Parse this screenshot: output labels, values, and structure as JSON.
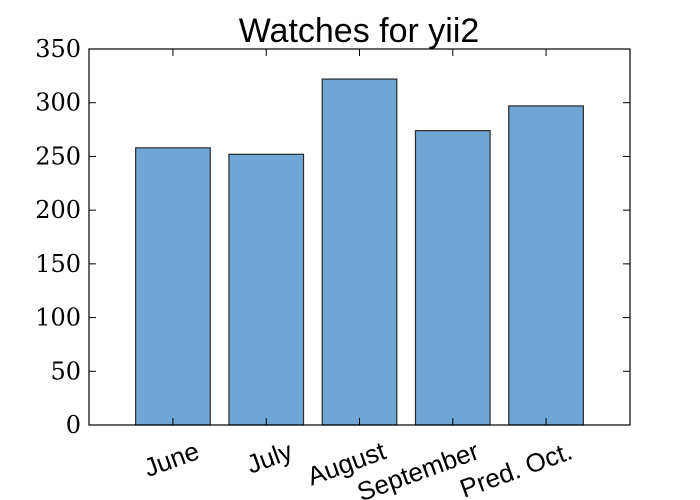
{
  "chart_data": {
    "type": "bar",
    "title": "Watches for yii2",
    "categories": [
      "June",
      "July",
      "August",
      "September",
      "Pred. Oct."
    ],
    "values": [
      258,
      252,
      322,
      274,
      297
    ],
    "xlabel": "",
    "ylabel": "",
    "ylim": [
      0,
      350
    ],
    "yticks": [
      0,
      50,
      100,
      150,
      200,
      250,
      300,
      350
    ],
    "grid": false,
    "legend": "none",
    "bar_color": "#6fa6d6",
    "bar_edge_color": "#2b2b2b",
    "xtick_rotation_deg": -20
  }
}
